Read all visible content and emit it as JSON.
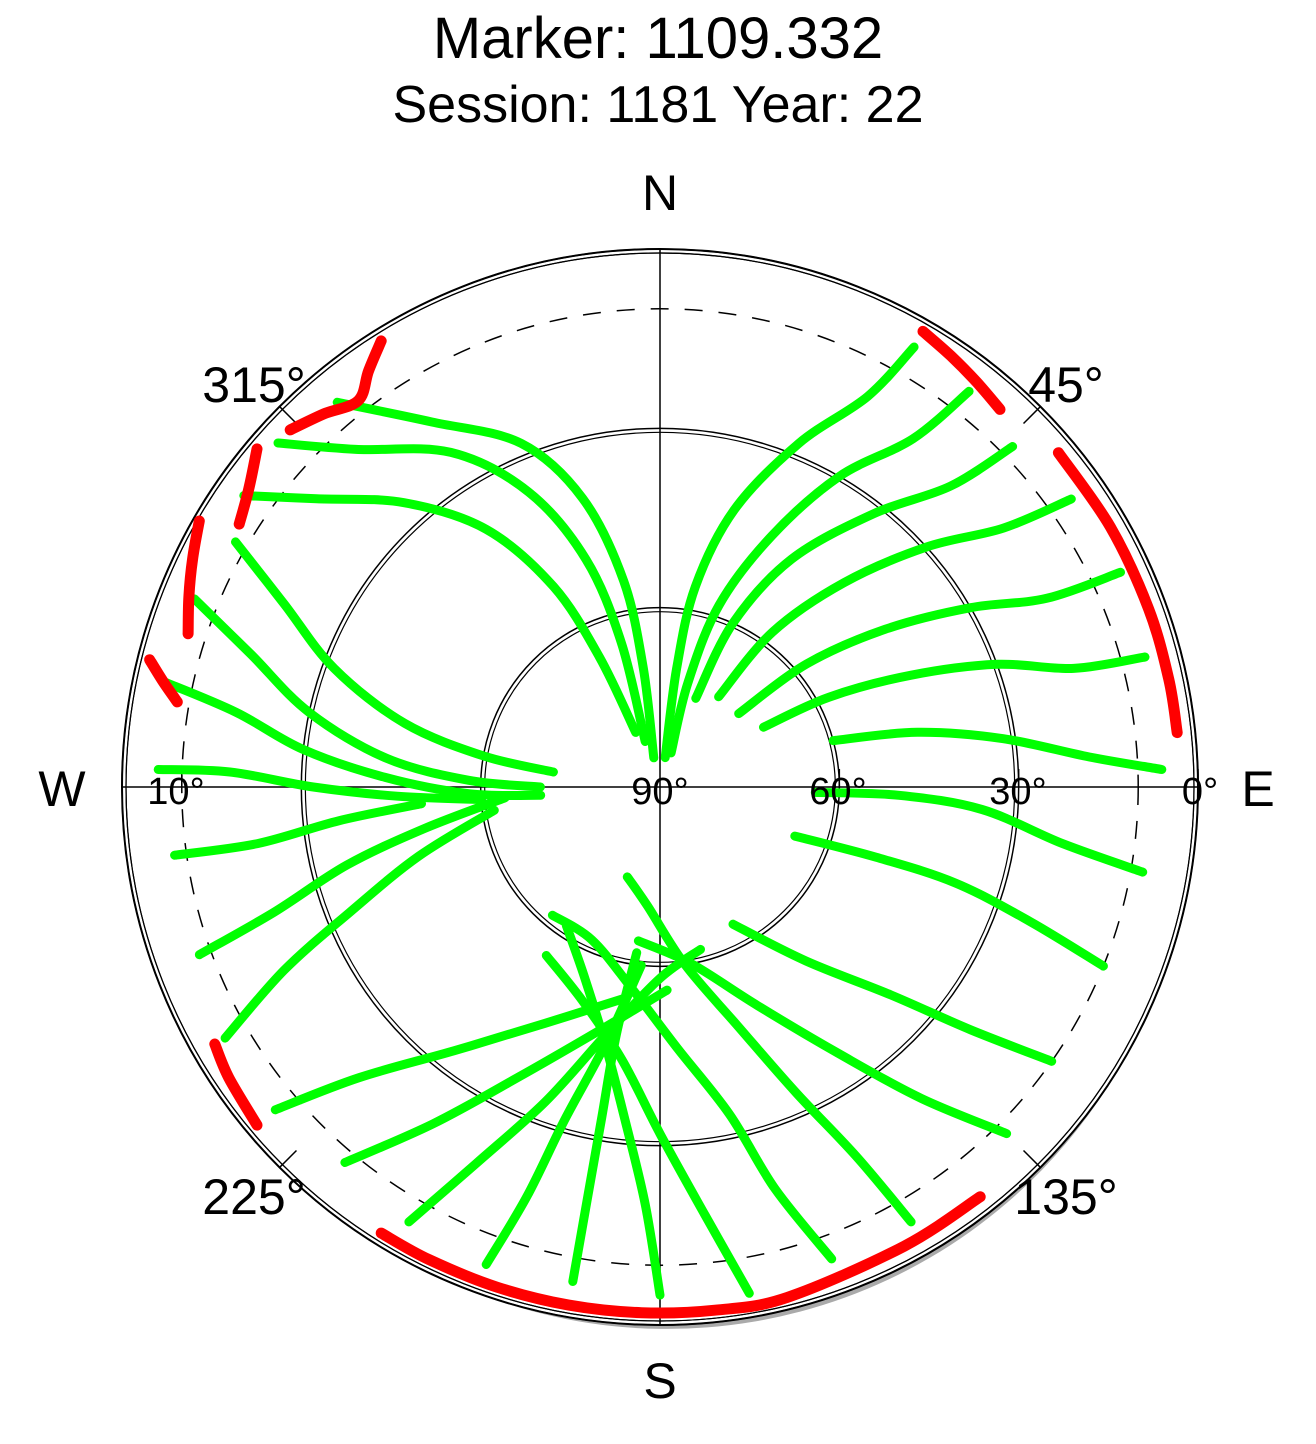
{
  "chart_data": {
    "type": "scatter",
    "projection": "polar-skyplot",
    "title": "Marker: 1109.332",
    "subtitle": "Session: 1181 Year: 22",
    "directions": {
      "north": "N",
      "south": "S",
      "west": "W",
      "east": "E"
    },
    "azimuth_tick_labels": [
      "45°",
      "135°",
      "225°",
      "315°"
    ],
    "elevation_tick_labels": [
      "0°",
      "30°",
      "60°",
      "90°",
      "10°"
    ],
    "elevation_range": [
      0,
      90
    ],
    "elevation_rings": [
      0,
      30,
      60
    ],
    "cutoff_elevation": 10,
    "grid": true,
    "colors": {
      "above_cutoff": "#00ff00",
      "below_cutoff": "#ff0000",
      "grid": "#000000",
      "horizon_mask": "#aaaaaa"
    },
    "series": [
      {
        "color": "#00ff00",
        "tracks": [
          [
            [
              320,
              6
            ],
            [
              328,
              18
            ],
            [
              338,
              28
            ],
            [
              345,
              40
            ],
            [
              350,
              55
            ],
            [
              352,
              70
            ],
            [
              348,
              85
            ]
          ],
          [
            [
              312,
              4
            ],
            [
              318,
              14
            ],
            [
              328,
              24
            ],
            [
              336,
              36
            ],
            [
              342,
              50
            ],
            [
              345,
              65
            ],
            [
              342,
              82
            ]
          ],
          [
            [
              305,
              5
            ],
            [
              310,
              15
            ],
            [
              318,
              26
            ],
            [
              326,
              38
            ],
            [
              332,
              52
            ],
            [
              335,
              66
            ],
            [
              336,
              80
            ]
          ],
          [
            [
              30,
              5
            ],
            [
              28,
              16
            ],
            [
              22,
              28
            ],
            [
              15,
              42
            ],
            [
              10,
              56
            ],
            [
              8,
              70
            ],
            [
              10,
              85
            ]
          ],
          [
            [
              38,
              6
            ],
            [
              36,
              18
            ],
            [
              30,
              30
            ],
            [
              24,
              44
            ],
            [
              18,
              58
            ],
            [
              15,
              72
            ],
            [
              18,
              84
            ]
          ],
          [
            [
              46,
              8
            ],
            [
              44,
              20
            ],
            [
              38,
              32
            ],
            [
              30,
              46
            ],
            [
              24,
              60
            ],
            [
              22,
              74
            ]
          ],
          [
            [
              55,
              6
            ],
            [
              53,
              18
            ],
            [
              48,
              30
            ],
            [
              42,
              44
            ],
            [
              36,
              58
            ],
            [
              33,
              72
            ]
          ],
          [
            [
              65,
              5
            ],
            [
              64,
              18
            ],
            [
              60,
              30
            ],
            [
              55,
              44
            ],
            [
              50,
              58
            ],
            [
              47,
              72
            ]
          ],
          [
            [
              75,
              6
            ],
            [
              74,
              18
            ],
            [
              70,
              30
            ],
            [
              66,
              44
            ],
            [
              62,
              58
            ],
            [
              60,
              70
            ]
          ],
          [
            [
              88,
              6
            ],
            [
              86,
              18
            ],
            [
              82,
              32
            ],
            [
              78,
              46
            ],
            [
              75,
              60
            ]
          ],
          [
            [
              100,
              8
            ],
            [
              98,
              22
            ],
            [
              94,
              36
            ],
            [
              92,
              50
            ],
            [
              92,
              64
            ]
          ],
          [
            [
              112,
              10
            ],
            [
              110,
              24
            ],
            [
              108,
              38
            ],
            [
              108,
              52
            ],
            [
              110,
              66
            ]
          ],
          [
            [
              300,
              8
            ],
            [
              296,
              20
            ],
            [
              290,
              32
            ],
            [
              284,
              46
            ],
            [
              280,
              60
            ],
            [
              278,
              72
            ]
          ],
          [
            [
              292,
              6
            ],
            [
              288,
              18
            ],
            [
              282,
              30
            ],
            [
              276,
              44
            ],
            [
              272,
              58
            ],
            [
              270,
              70
            ]
          ],
          [
            [
              282,
              5
            ],
            [
              280,
              18
            ],
            [
              276,
              30
            ],
            [
              272,
              44
            ],
            [
              268,
              58
            ],
            [
              266,
              70
            ]
          ],
          [
            [
              272,
              6
            ],
            [
              272,
              18
            ],
            [
              270,
              32
            ],
            [
              268,
              46
            ],
            [
              266,
              60
            ]
          ],
          [
            [
              262,
              8
            ],
            [
              262,
              22
            ],
            [
              264,
              36
            ],
            [
              266,
              50
            ]
          ],
          [
            [
              250,
              8
            ],
            [
              252,
              22
            ],
            [
              256,
              36
            ],
            [
              260,
              50
            ],
            [
              266,
              64
            ]
          ],
          [
            [
              240,
              6
            ],
            [
              244,
              20
            ],
            [
              248,
              34
            ],
            [
              254,
              48
            ],
            [
              262,
              62
            ]
          ],
          [
            [
              150,
              6
            ],
            [
              152,
              20
            ],
            [
              156,
              34
            ],
            [
              162,
              48
            ],
            [
              172,
              60
            ],
            [
              186,
              70
            ],
            [
              200,
              74
            ]
          ],
          [
            [
              160,
              6
            ],
            [
              164,
              20
            ],
            [
              168,
              34
            ],
            [
              176,
              46
            ],
            [
              188,
              56
            ],
            [
              204,
              62
            ],
            [
              220,
              62
            ]
          ],
          [
            [
              170,
              4
            ],
            [
              174,
              18
            ],
            [
              180,
              32
            ],
            [
              188,
              44
            ],
            [
              200,
              52
            ],
            [
              214,
              56
            ]
          ],
          [
            [
              180,
              5
            ],
            [
              182,
              20
            ],
            [
              186,
              34
            ],
            [
              192,
              46
            ],
            [
              202,
              56
            ],
            [
              214,
              62
            ]
          ],
          [
            [
              190,
              6
            ],
            [
              190,
              20
            ],
            [
              190,
              34
            ],
            [
              190,
              48
            ],
            [
              188,
              62
            ]
          ],
          [
            [
              200,
              5
            ],
            [
              198,
              18
            ],
            [
              196,
              32
            ],
            [
              192,
              46
            ],
            [
              186,
              60
            ]
          ],
          [
            [
              210,
              6
            ],
            [
              206,
              20
            ],
            [
              200,
              34
            ],
            [
              192,
              48
            ],
            [
              180,
              58
            ],
            [
              166,
              62
            ]
          ],
          [
            [
              220,
              8
            ],
            [
              214,
              22
            ],
            [
              206,
              36
            ],
            [
              194,
              48
            ],
            [
              178,
              56
            ]
          ],
          [
            [
              135,
              8
            ],
            [
              140,
              22
            ],
            [
              146,
              36
            ],
            [
              156,
              50
            ],
            [
              170,
              60
            ],
            [
              188,
              64
            ]
          ],
          [
            [
              125,
              10
            ],
            [
              128,
              24
            ],
            [
              132,
              38
            ],
            [
              140,
              52
            ],
            [
              152,
              64
            ]
          ],
          [
            [
              230,
              6
            ],
            [
              226,
              20
            ],
            [
              218,
              34
            ],
            [
              206,
              46
            ],
            [
              190,
              54
            ]
          ]
        ]
      },
      {
        "color": "#ff0000",
        "tracks": [
          [
            [
              328,
              2
            ],
            [
              325,
              5
            ],
            [
              322,
              8
            ],
            [
              318,
              6
            ],
            [
              314,
              4
            ]
          ],
          [
            [
              310,
              2
            ],
            [
              306,
              5
            ],
            [
              302,
              7
            ]
          ],
          [
            [
              300,
              1
            ],
            [
              296,
              3
            ],
            [
              292,
              5
            ],
            [
              288,
              7
            ]
          ],
          [
            [
              284,
              2
            ],
            [
              282,
              5
            ],
            [
              280,
              8
            ]
          ],
          [
            [
              30,
              2
            ],
            [
              34,
              3
            ],
            [
              38,
              4
            ],
            [
              42,
              5
            ]
          ],
          [
            [
              50,
              3
            ],
            [
              60,
              3
            ],
            [
              70,
              3
            ],
            [
              78,
              3
            ],
            [
              84,
              3
            ]
          ],
          [
            [
              240,
              4
            ],
            [
              236,
              3
            ],
            [
              230,
              2
            ]
          ],
          [
            [
              212,
              2
            ],
            [
              206,
              2
            ],
            [
              198,
              2
            ],
            [
              190,
              2
            ],
            [
              182,
              2
            ],
            [
              174,
              2
            ],
            [
              166,
              2
            ],
            [
              152,
              3
            ],
            [
              142,
              3
            ]
          ]
        ]
      }
    ]
  }
}
